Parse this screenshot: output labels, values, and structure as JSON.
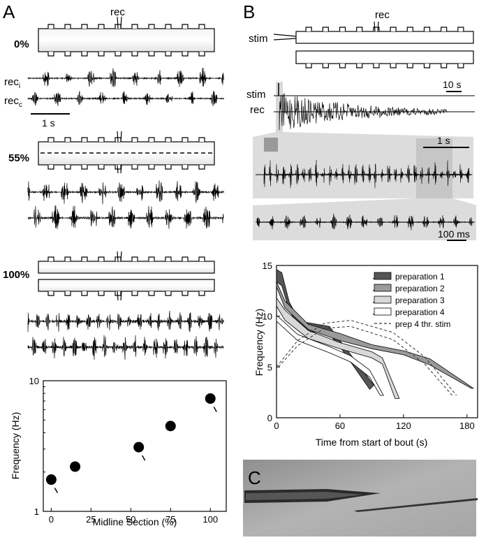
{
  "panels": {
    "a": {
      "letter": "A",
      "rec_label": "rec",
      "conditions": [
        "0%",
        "55%",
        "100%"
      ],
      "trace_ipsi": "rec",
      "trace_ipsi_sub": "i",
      "trace_contra": "rec",
      "trace_contra_sub": "c",
      "scale_bar": "1 s"
    },
    "b": {
      "letter": "B",
      "stim_label": "stim",
      "rec_label": "rec",
      "scale_10s": "10 s",
      "scale_1s": "1 s",
      "scale_100ms": "100 ms"
    },
    "c": {
      "letter": "C"
    }
  },
  "chart_data": [
    {
      "type": "scatter",
      "xlabel": "Midline Section (%)",
      "ylabel": "Frequency (Hz)",
      "xlim": [
        -5,
        110
      ],
      "ylim": [
        1,
        10
      ],
      "yscale": "log",
      "x_ticks": [
        "0",
        "25",
        "50",
        "75",
        "100"
      ],
      "y_ticks": [
        "1",
        "10"
      ],
      "x": [
        0,
        15,
        55,
        75,
        100
      ],
      "y": [
        1.75,
        2.2,
        3.1,
        4.5,
        7.3
      ],
      "marked": [
        true,
        false,
        true,
        false,
        true
      ]
    },
    {
      "type": "area",
      "xlabel": "Time from start of bout (s)",
      "ylabel": "Frequency (Hz)",
      "xlim": [
        0,
        190
      ],
      "ylim": [
        0,
        15
      ],
      "x_ticks": [
        "0",
        "60",
        "120",
        "180"
      ],
      "y_ticks": [
        "0",
        "5",
        "10",
        "15"
      ],
      "legend_position": "top-right",
      "series": [
        {
          "name": "preparation 1",
          "color": "#555555",
          "upper": [
            [
              0,
              14.6
            ],
            [
              5,
              14.3
            ],
            [
              12,
              11.4
            ],
            [
              22,
              9.5
            ],
            [
              50,
              9.0
            ],
            [
              60,
              7.6
            ],
            [
              92,
              3.2
            ]
          ],
          "lower": [
            [
              0,
              13.4
            ],
            [
              5,
              13.0
            ],
            [
              12,
              10.6
            ],
            [
              22,
              8.7
            ],
            [
              50,
              8.2
            ],
            [
              60,
              7.0
            ],
            [
              88,
              2.8
            ]
          ]
        },
        {
          "name": "preparation 2",
          "color": "#9a9a9a",
          "upper": [
            [
              0,
              13.4
            ],
            [
              8,
              11.5
            ],
            [
              30,
              9.2
            ],
            [
              60,
              8.3
            ],
            [
              90,
              7.2
            ],
            [
              120,
              6.6
            ],
            [
              145,
              5.8
            ],
            [
              155,
              5.1
            ],
            [
              186,
              2.9
            ]
          ],
          "lower": [
            [
              0,
              12.9
            ],
            [
              8,
              10.8
            ],
            [
              30,
              8.7
            ],
            [
              60,
              7.6
            ],
            [
              90,
              6.8
            ],
            [
              120,
              6.2
            ],
            [
              145,
              5.2
            ],
            [
              155,
              4.6
            ],
            [
              184,
              2.9
            ]
          ]
        },
        {
          "name": "preparation 3",
          "color": "#d8d8d8",
          "upper": [
            [
              0,
              11.8
            ],
            [
              8,
              10.6
            ],
            [
              30,
              8.6
            ],
            [
              60,
              7.4
            ],
            [
              90,
              6.5
            ],
            [
              100,
              5.9
            ],
            [
              116,
              1.9
            ]
          ],
          "lower": [
            [
              0,
              11.0
            ],
            [
              8,
              9.6
            ],
            [
              30,
              7.8
            ],
            [
              60,
              6.8
            ],
            [
              90,
              5.9
            ],
            [
              100,
              5.3
            ],
            [
              112,
              1.9
            ]
          ]
        },
        {
          "name": "preparation 4",
          "color": "#ffffff",
          "upper": [
            [
              0,
              10.1
            ],
            [
              20,
              8.2
            ],
            [
              50,
              7.0
            ],
            [
              70,
              6.1
            ],
            [
              88,
              4.7
            ],
            [
              101,
              2.2
            ]
          ],
          "lower": [
            [
              0,
              9.5
            ],
            [
              20,
              7.6
            ],
            [
              50,
              6.4
            ],
            [
              70,
              5.5
            ],
            [
              88,
              4.0
            ],
            [
              98,
              2.2
            ]
          ]
        },
        {
          "name": "prep 4 thr. stim",
          "color": "#333333",
          "dashed": true,
          "upper": [
            [
              0,
              5.0
            ],
            [
              20,
              7.6
            ],
            [
              45,
              9.3
            ],
            [
              70,
              9.6
            ],
            [
              110,
              8.4
            ],
            [
              140,
              6.0
            ],
            [
              170,
              2.2
            ]
          ],
          "lower": [
            [
              0,
              4.8
            ],
            [
              20,
              7.1
            ],
            [
              45,
              8.8
            ],
            [
              70,
              9.0
            ],
            [
              110,
              7.7
            ],
            [
              140,
              5.3
            ],
            [
              166,
              2.2
            ]
          ]
        }
      ]
    }
  ]
}
